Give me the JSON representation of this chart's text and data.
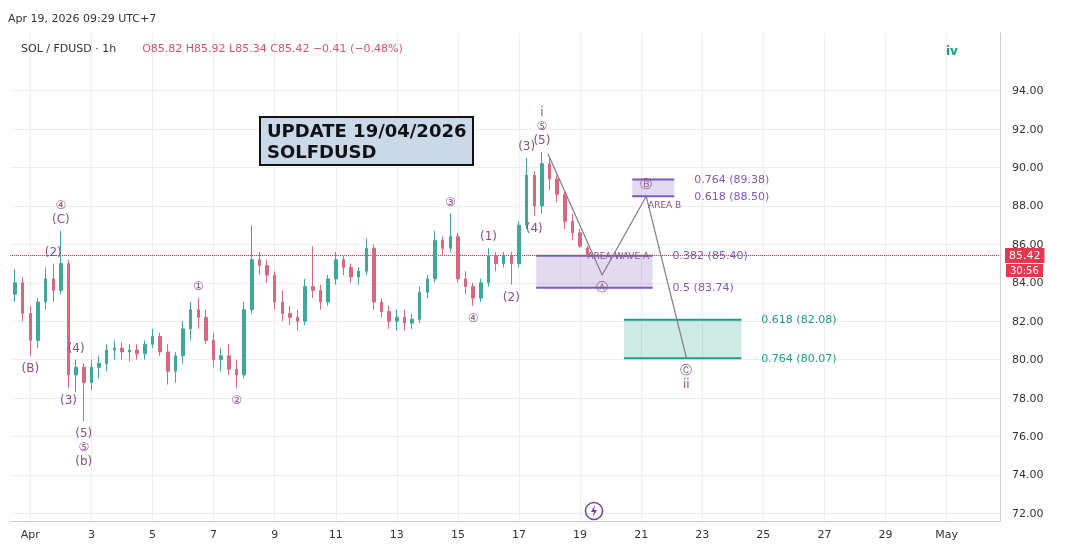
{
  "chart_data": {
    "type": "candlestick",
    "title": "SOL / FDUSD · 1h",
    "subtitle": "O85.82 H85.92 L85.34 C85.42 −0.41 (−0.48%)",
    "x": [
      "2026-03-31T12:00",
      "2026-03-31T18:00",
      "2026-04-01T00:00",
      "2026-04-01T06:00",
      "2026-04-01T12:00",
      "2026-04-01T18:00",
      "2026-04-02T00:00",
      "2026-04-02T06:00",
      "2026-04-02T12:00",
      "2026-04-02T18:00",
      "2026-04-03T00:00",
      "2026-04-03T06:00",
      "2026-04-03T12:00",
      "2026-04-03T18:00",
      "2026-04-04T00:00",
      "2026-04-04T06:00",
      "2026-04-04T12:00",
      "2026-04-04T18:00",
      "2026-04-05T00:00",
      "2026-04-05T06:00",
      "2026-04-05T12:00",
      "2026-04-05T18:00",
      "2026-04-06T00:00",
      "2026-04-06T06:00",
      "2026-04-06T12:00",
      "2026-04-06T18:00",
      "2026-04-07T00:00",
      "2026-04-07T06:00",
      "2026-04-07T12:00",
      "2026-04-07T18:00",
      "2026-04-08T00:00",
      "2026-04-08T06:00",
      "2026-04-08T12:00",
      "2026-04-08T18:00",
      "2026-04-09T00:00",
      "2026-04-09T06:00",
      "2026-04-09T12:00",
      "2026-04-09T18:00",
      "2026-04-10T00:00",
      "2026-04-10T06:00",
      "2026-04-10T12:00",
      "2026-04-10T18:00",
      "2026-04-11T00:00",
      "2026-04-11T06:00",
      "2026-04-11T12:00",
      "2026-04-11T18:00",
      "2026-04-12T00:00",
      "2026-04-12T06:00",
      "2026-04-12T12:00",
      "2026-04-12T18:00",
      "2026-04-13T00:00",
      "2026-04-13T06:00",
      "2026-04-13T12:00",
      "2026-04-13T18:00",
      "2026-04-14T00:00",
      "2026-04-14T06:00",
      "2026-04-14T12:00",
      "2026-04-14T18:00",
      "2026-04-15T00:00",
      "2026-04-15T06:00",
      "2026-04-15T12:00",
      "2026-04-15T18:00",
      "2026-04-16T00:00",
      "2026-04-16T06:00",
      "2026-04-16T12:00",
      "2026-04-16T18:00",
      "2026-04-17T00:00",
      "2026-04-17T06:00",
      "2026-04-17T12:00",
      "2026-04-17T18:00",
      "2026-04-18T00:00",
      "2026-04-18T06:00",
      "2026-04-18T12:00",
      "2026-04-18T18:00",
      "2026-04-19T00:00",
      "2026-04-19T06:00"
    ],
    "ohlc": [
      [
        83.4,
        84.7,
        83.0,
        84.0
      ],
      [
        84.0,
        84.3,
        82.0,
        82.4
      ],
      [
        82.4,
        82.8,
        80.2,
        81.0
      ],
      [
        81.0,
        83.2,
        80.6,
        83.0
      ],
      [
        83.0,
        84.8,
        82.6,
        84.2
      ],
      [
        84.2,
        85.0,
        83.0,
        83.6
      ],
      [
        83.6,
        86.7,
        83.4,
        85.0
      ],
      [
        85.0,
        85.2,
        78.5,
        79.2
      ],
      [
        79.2,
        80.0,
        78.3,
        79.6
      ],
      [
        79.6,
        79.8,
        76.8,
        78.8
      ],
      [
        78.8,
        80.0,
        78.4,
        79.6
      ],
      [
        79.6,
        80.2,
        79.0,
        79.8
      ],
      [
        79.8,
        80.8,
        79.4,
        80.5
      ],
      [
        80.5,
        81.0,
        80.0,
        80.6
      ],
      [
        80.6,
        80.9,
        80.0,
        80.4
      ],
      [
        80.4,
        80.8,
        79.9,
        80.5
      ],
      [
        80.5,
        80.8,
        80.0,
        80.3
      ],
      [
        80.3,
        81.0,
        80.0,
        80.8
      ],
      [
        80.8,
        81.6,
        80.6,
        81.2
      ],
      [
        81.2,
        81.4,
        80.2,
        80.4
      ],
      [
        80.4,
        80.8,
        78.7,
        79.4
      ],
      [
        79.4,
        80.4,
        78.8,
        80.2
      ],
      [
        80.2,
        82.0,
        79.8,
        81.6
      ],
      [
        81.6,
        83.0,
        81.0,
        82.6
      ],
      [
        82.6,
        83.2,
        81.6,
        82.2
      ],
      [
        82.2,
        82.6,
        80.8,
        81.0
      ],
      [
        81.0,
        81.4,
        79.6,
        80.0
      ],
      [
        80.0,
        80.6,
        79.4,
        80.2
      ],
      [
        80.2,
        80.8,
        79.2,
        79.5
      ],
      [
        79.5,
        80.0,
        78.5,
        79.2
      ],
      [
        79.2,
        83.0,
        79.0,
        82.6
      ],
      [
        82.6,
        87.0,
        82.4,
        85.2
      ],
      [
        85.2,
        85.6,
        84.4,
        84.9
      ],
      [
        84.9,
        85.2,
        84.0,
        84.4
      ],
      [
        84.4,
        84.6,
        82.6,
        83.0
      ],
      [
        83.0,
        83.6,
        82.0,
        82.4
      ],
      [
        82.4,
        82.8,
        81.8,
        82.2
      ],
      [
        82.2,
        82.6,
        81.5,
        82.0
      ],
      [
        82.0,
        84.2,
        81.8,
        83.8
      ],
      [
        83.8,
        85.9,
        83.2,
        83.6
      ],
      [
        83.6,
        83.9,
        82.6,
        83.0
      ],
      [
        83.0,
        84.4,
        82.8,
        84.2
      ],
      [
        84.2,
        85.6,
        83.9,
        85.2
      ],
      [
        85.2,
        85.4,
        84.4,
        84.8
      ],
      [
        84.8,
        85.0,
        84.0,
        84.3
      ],
      [
        84.3,
        84.8,
        83.9,
        84.6
      ],
      [
        84.6,
        86.3,
        84.4,
        85.8
      ],
      [
        85.8,
        86.0,
        82.6,
        83.0
      ],
      [
        83.0,
        83.2,
        82.2,
        82.5
      ],
      [
        82.5,
        82.8,
        81.6,
        82.0
      ],
      [
        82.0,
        82.6,
        81.5,
        82.2
      ],
      [
        82.2,
        82.6,
        81.5,
        81.9
      ],
      [
        81.9,
        82.4,
        81.6,
        82.1
      ],
      [
        82.1,
        83.8,
        81.9,
        83.5
      ],
      [
        83.5,
        84.4,
        83.2,
        84.2
      ],
      [
        84.2,
        86.7,
        84.0,
        86.2
      ],
      [
        86.2,
        86.4,
        85.4,
        85.8
      ],
      [
        85.8,
        87.6,
        85.6,
        86.4
      ],
      [
        86.4,
        86.6,
        84.0,
        84.2
      ],
      [
        84.2,
        84.6,
        83.4,
        83.8
      ],
      [
        83.8,
        84.0,
        82.8,
        83.2
      ],
      [
        83.2,
        84.2,
        83.0,
        84.0
      ],
      [
        84.0,
        85.8,
        83.8,
        85.4
      ],
      [
        85.4,
        85.6,
        84.6,
        85.0
      ],
      [
        85.0,
        85.6,
        84.8,
        85.4
      ],
      [
        85.4,
        85.6,
        83.9,
        85.0
      ],
      [
        85.0,
        87.2,
        84.8,
        87.0
      ],
      [
        87.0,
        90.5,
        86.8,
        89.6
      ],
      [
        89.6,
        89.8,
        87.5,
        88.0
      ],
      [
        88.0,
        90.8,
        87.6,
        90.2
      ],
      [
        90.2,
        90.6,
        88.8,
        89.4
      ],
      [
        89.4,
        89.6,
        88.2,
        88.6
      ],
      [
        88.6,
        88.8,
        86.8,
        87.2
      ],
      [
        87.2,
        87.6,
        86.2,
        86.6
      ],
      [
        86.6,
        86.8,
        85.8,
        85.9
      ],
      [
        85.82,
        85.92,
        85.34,
        85.42
      ]
    ],
    "colors": [
      "#3fa89c",
      "#d9687f",
      "#d9687f",
      "#3fa89c",
      "#3fa89c",
      "#d9687f",
      "#3fa89c",
      "#d9687f",
      "#3fa89c",
      "#d9687f",
      "#3fa89c",
      "#3fa89c",
      "#3fa89c",
      "#3fa89c",
      "#d9687f",
      "#3fa89c",
      "#d9687f",
      "#3fa89c",
      "#3fa89c",
      "#d9687f",
      "#d9687f",
      "#3fa89c",
      "#3fa89c",
      "#3fa89c",
      "#d9687f",
      "#d9687f",
      "#d9687f",
      "#3fa89c",
      "#d9687f",
      "#d9687f",
      "#3fa89c",
      "#3fa89c",
      "#d9687f",
      "#d9687f",
      "#d9687f",
      "#d9687f",
      "#d9687f",
      "#d9687f",
      "#3fa89c",
      "#d9687f",
      "#d9687f",
      "#3fa89c",
      "#3fa89c",
      "#d9687f",
      "#d9687f",
      "#3fa89c",
      "#3fa89c",
      "#d9687f",
      "#d9687f",
      "#d9687f",
      "#3fa89c",
      "#d9687f",
      "#3fa89c",
      "#3fa89c",
      "#3fa89c",
      "#3fa89c",
      "#d9687f",
      "#3fa89c",
      "#d9687f",
      "#d9687f",
      "#d9687f",
      "#3fa89c",
      "#3fa89c",
      "#d9687f",
      "#3fa89c",
      "#d9687f",
      "#3fa89c",
      "#3fa89c",
      "#d9687f",
      "#3fa89c",
      "#d9687f",
      "#d9687f",
      "#d9687f",
      "#d9687f",
      "#d9687f",
      "#d9687f"
    ],
    "series": [
      {
        "type": "line",
        "name": "0.382 (85.40)",
        "color": "#7e57c2",
        "x": [
          "2026-04-17T13:30",
          "2026-04-21T09:00"
        ],
        "values": [
          85.4,
          85.4
        ],
        "lower": [
          83.74,
          83.74
        ],
        "upper": [
          85.4,
          85.4
        ]
      },
      {
        "type": "line",
        "name": "0.5 (83.74)",
        "color": "#7e57c2",
        "x": [
          "2026-04-17T13:30",
          "2026-04-21T09:00"
        ],
        "values": [
          83.74,
          83.74
        ]
      },
      {
        "type": "line",
        "name": "0.764 (89.38)",
        "color": "#7e57c2",
        "x": [
          "2026-04-20T17:00",
          "2026-04-22T02:00"
        ],
        "values": [
          89.38,
          89.38
        ],
        "lower": [
          88.5,
          88.5
        ],
        "upper": [
          89.38,
          89.38
        ]
      },
      {
        "type": "line",
        "name": "0.618 (88.50)",
        "color": "#7e57c2",
        "x": [
          "2026-04-20T17:00",
          "2026-04-22T02:00"
        ],
        "values": [
          88.5,
          88.5
        ]
      },
      {
        "type": "line",
        "name": "0.618 (82.08)",
        "color": "#1e9e8a",
        "x": [
          "2026-04-20T10:30",
          "2026-04-24T06:45"
        ],
        "values": [
          82.08,
          82.08
        ],
        "lower": [
          80.07,
          80.07
        ],
        "upper": [
          82.08,
          82.08
        ]
      },
      {
        "type": "line",
        "name": "0.764 (80.07)",
        "color": "#1e9e8a",
        "x": [
          "2026-04-20T10:30",
          "2026-04-24T06:45"
        ],
        "values": [
          80.07,
          80.07
        ]
      },
      {
        "type": "line",
        "color": "#85778f",
        "x": [
          "2026-04-17T22:50",
          "2026-04-19T17:20",
          "2026-04-21T04:00",
          "2026-04-22T11:30"
        ],
        "values": [
          90.7,
          84.4,
          88.5,
          80.1
        ]
      }
    ],
    "xlim": [
      "2026-03-31T08:00",
      "2026-05-02T18:00"
    ],
    "xticks": [
      {
        "value": "2026-04-01",
        "label": "Apr"
      },
      {
        "value": "2026-04-03",
        "label": "3"
      },
      {
        "value": "2026-04-05",
        "label": "5"
      },
      {
        "value": "2026-04-07",
        "label": "7"
      },
      {
        "value": "2026-04-09",
        "label": "9"
      },
      {
        "value": "2026-04-11",
        "label": "11"
      },
      {
        "value": "2026-04-13",
        "label": "13"
      },
      {
        "value": "2026-04-15",
        "label": "15"
      },
      {
        "value": "2026-04-17",
        "label": "17"
      },
      {
        "value": "2026-04-19",
        "label": "19"
      },
      {
        "value": "2026-04-21",
        "label": "21"
      },
      {
        "value": "2026-04-23",
        "label": "23"
      },
      {
        "value": "2026-04-25",
        "label": "25"
      },
      {
        "value": "2026-04-27",
        "label": "27"
      },
      {
        "value": "2026-04-29",
        "label": "29"
      },
      {
        "value": "2026-05-01",
        "label": "May"
      }
    ],
    "ylim": [
      71.6,
      97
    ],
    "yticks": [
      {
        "value": 72,
        "label": "72.00"
      },
      {
        "value": 74,
        "label": "74.00"
      },
      {
        "value": 76,
        "label": "76.00"
      },
      {
        "value": 78,
        "label": "78.00"
      },
      {
        "value": 80,
        "label": "80.00"
      },
      {
        "value": 82,
        "label": "82.00"
      },
      {
        "value": 84,
        "label": "84.00"
      },
      {
        "value": 86,
        "label": "86.00"
      },
      {
        "value": 88,
        "label": "88.00"
      },
      {
        "value": 90,
        "label": "90.00"
      },
      {
        "value": 92,
        "label": "92.00"
      },
      {
        "value": 94,
        "label": "94.00"
      }
    ],
    "grid": true,
    "ref_lines": [
      {
        "axis": "y",
        "value": 85.42,
        "label": "85.42",
        "color": "#e8364f",
        "line_style": "dotted"
      }
    ],
    "annotations": [
      "Apr 19, 2026 09:29 UTC+7",
      "UPDATE 19/04/2026\nSOLFDUSD",
      "30:56",
      "iv",
      {
        "text": "(C)",
        "x": "2026-04-02T00:00",
        "y": 86.7
      },
      {
        "text": "④",
        "x": "2026-04-02T00:00",
        "y": 86.7
      },
      {
        "text": "(2)",
        "x": "2026-04-01T18:00",
        "y": 85.0
      },
      {
        "text": "(B)",
        "x": "2026-04-01T00:00",
        "y": 80.2
      },
      {
        "text": "(4)",
        "x": "2026-04-02T12:00",
        "y": 80.0
      },
      {
        "text": "(3)",
        "x": "2026-04-02T06:00",
        "y": 78.5
      },
      {
        "text": "(5)",
        "x": "2026-04-02T18:00",
        "y": 76.8
      },
      {
        "text": "⑤",
        "x": "2026-04-02T18:00",
        "y": 76.8
      },
      {
        "text": "(b)",
        "x": "2026-04-02T18:00",
        "y": 76.8
      },
      {
        "text": "①",
        "x": "2026-04-06T12:00",
        "y": 83.2
      },
      {
        "text": "②",
        "x": "2026-04-07T18:00",
        "y": 78.5
      },
      {
        "text": "③",
        "x": "2026-04-14T18:00",
        "y": 87.6
      },
      {
        "text": "④",
        "x": "2026-04-15T12:00",
        "y": 82.8
      },
      {
        "text": "(1)",
        "x": "2026-04-16T00:00",
        "y": 85.8
      },
      {
        "text": "(2)",
        "x": "2026-04-16T18:00",
        "y": 83.9
      },
      {
        "text": "(3)",
        "x": "2026-04-17T06:00",
        "y": 90.5
      },
      {
        "text": "(4)",
        "x": "2026-04-17T12:00",
        "y": 87.5
      },
      {
        "text": "(5)",
        "x": "2026-04-17T18:00",
        "y": 90.8
      },
      {
        "text": "⑤",
        "x": "2026-04-17T18:00",
        "y": 90.8
      },
      {
        "text": "i",
        "x": "2026-04-17T18:00",
        "y": 90.8
      },
      {
        "text": "AREA WAVE A",
        "x": "2026-04-20T06:00",
        "y": 85.4
      },
      {
        "text": "Ⓐ",
        "x": "2026-04-19T17:20",
        "y": 84.4
      },
      {
        "text": "Ⓑ",
        "x": "2026-04-21T04:00",
        "y": 88.5
      },
      "AREA B",
      {
        "text": "Ⓒ",
        "x": "2026-04-22T11:30",
        "y": 80.1
      },
      {
        "text": "ii",
        "x": "2026-04-22T11:30",
        "y": 80.1
      }
    ]
  }
}
